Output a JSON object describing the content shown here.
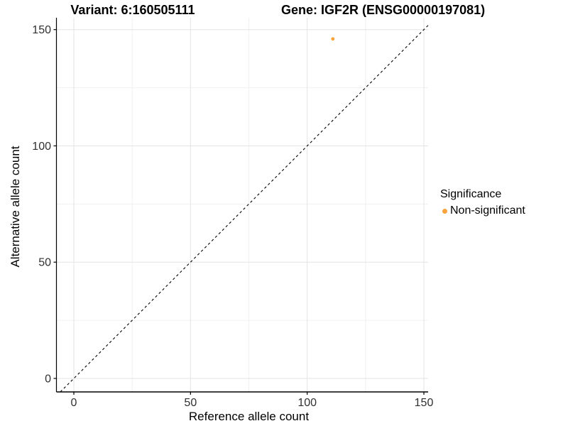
{
  "titles": {
    "variant": "Variant: 6:160505111",
    "gene": "Gene: IGF2R (ENSG00000197081)"
  },
  "axes": {
    "x_label": "Reference allele count",
    "y_label": "Alternative allele count"
  },
  "legend": {
    "title": "Significance",
    "items": [
      {
        "label": "Non-significant",
        "color": "#FAA23C"
      }
    ]
  },
  "chart_data": {
    "type": "scatter",
    "title": "Variant: 6:160505111    Gene: IGF2R (ENSG00000197081)",
    "xlabel": "Reference allele count",
    "ylabel": "Alternative allele count",
    "xlim": [
      0,
      150
    ],
    "ylim": [
      0,
      150
    ],
    "xticks": [
      0,
      50,
      100,
      150
    ],
    "yticks": [
      0,
      50,
      100,
      150
    ],
    "grid": "major+minor",
    "background": "#ffffff",
    "grid_major_color": "#e3e3e3",
    "grid_minor_color": "#f0f0f0",
    "axis_line_color": "#333333",
    "legend_position": "right",
    "series": [
      {
        "name": "Non-significant",
        "color": "#FAA23C",
        "points": [
          {
            "x": 111,
            "y": 146
          }
        ]
      }
    ],
    "reference_line": {
      "type": "identity",
      "style": "dashed",
      "color": "#000000"
    }
  }
}
